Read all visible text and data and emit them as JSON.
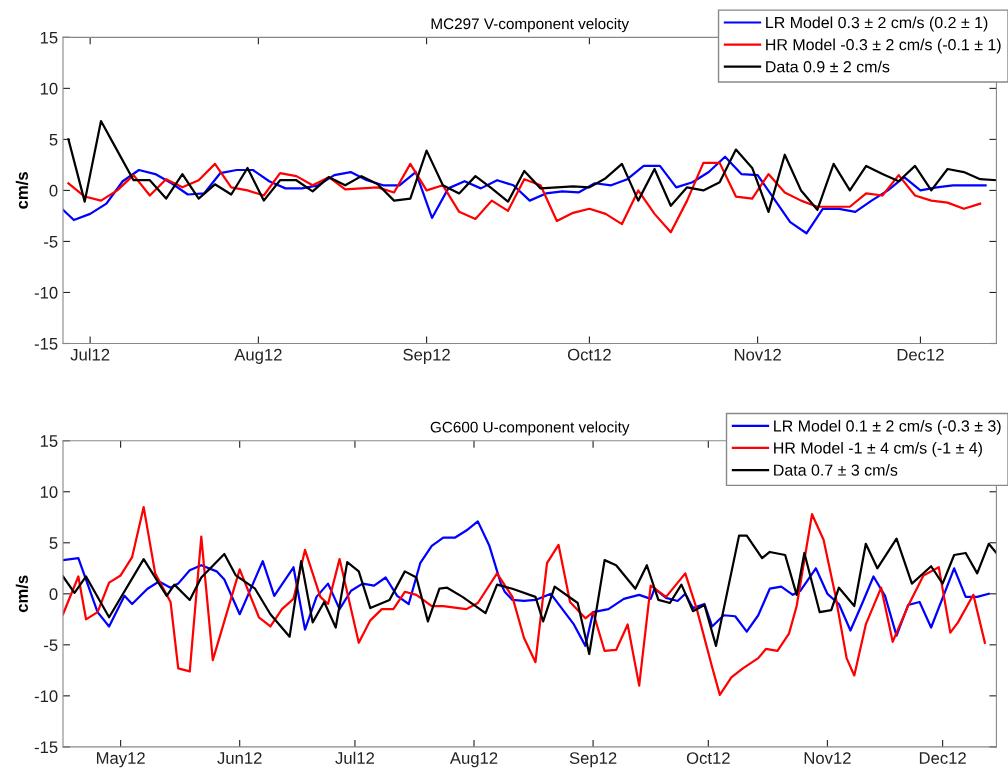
{
  "chart_data": [
    {
      "type": "line",
      "title": "MC297 V-component velocity",
      "ylabel": "cm/s",
      "xlim": [
        "2012-06-26",
        "2012-12-15"
      ],
      "xticks": [
        {
          "value": "2012-07-01",
          "label": "Jul12"
        },
        {
          "value": "2012-08-01",
          "label": "Aug12"
        },
        {
          "value": "2012-09-01",
          "label": "Sep12"
        },
        {
          "value": "2012-10-01",
          "label": "Oct12"
        },
        {
          "value": "2012-11-01",
          "label": "Nov12"
        },
        {
          "value": "2012-12-01",
          "label": "Dec12"
        }
      ],
      "ylim": [
        -15,
        15
      ],
      "yticks": [
        -15,
        -10,
        -5,
        0,
        5,
        10,
        15
      ],
      "grid": false,
      "legend": "top right",
      "marker": "none",
      "line_style": "solid",
      "series": [
        {
          "name": "LR Model 0.3 ± 2 cm/s (0.2 ± 1)",
          "color": "#0000ff",
          "x": [
            "2012-06-26",
            "2012-06-28",
            "2012-07-01",
            "2012-07-04",
            "2012-07-07",
            "2012-07-10",
            "2012-07-13",
            "2012-07-16",
            "2012-07-19",
            "2012-07-22",
            "2012-07-25",
            "2012-07-28",
            "2012-07-31",
            "2012-08-03",
            "2012-08-06",
            "2012-08-09",
            "2012-08-12",
            "2012-08-15",
            "2012-08-18",
            "2012-08-21",
            "2012-08-24",
            "2012-08-27",
            "2012-08-30",
            "2012-09-02",
            "2012-09-05",
            "2012-09-08",
            "2012-09-11",
            "2012-09-14",
            "2012-09-17",
            "2012-09-20",
            "2012-09-23",
            "2012-09-26",
            "2012-09-29",
            "2012-10-02",
            "2012-10-05",
            "2012-10-08",
            "2012-10-11",
            "2012-10-14",
            "2012-10-17",
            "2012-10-20",
            "2012-10-23",
            "2012-10-26",
            "2012-10-29",
            "2012-11-01",
            "2012-11-04",
            "2012-11-07",
            "2012-11-10",
            "2012-11-13",
            "2012-11-16",
            "2012-11-19",
            "2012-11-22",
            "2012-11-25",
            "2012-11-28",
            "2012-12-01",
            "2012-12-04",
            "2012-12-07",
            "2012-12-10",
            "2012-12-13"
          ],
          "values": [
            -1.9,
            -2.9,
            -2.3,
            -1.3,
            0.9,
            2.0,
            1.6,
            0.7,
            -0.4,
            -0.3,
            1.7,
            2.0,
            2.0,
            0.9,
            0.2,
            0.2,
            0.5,
            1.5,
            1.8,
            1.0,
            0.5,
            0.5,
            1.8,
            -2.7,
            0.2,
            0.9,
            0.2,
            1.0,
            0.5,
            -1.0,
            -0.3,
            -0.1,
            -0.2,
            0.7,
            0.5,
            1.1,
            2.4,
            2.4,
            0.3,
            0.8,
            1.8,
            3.3,
            1.6,
            1.5,
            -0.8,
            -3.1,
            -4.2,
            -1.8,
            -1.8,
            -2.1,
            -1.0,
            0.0,
            1.3,
            0.0,
            0.3,
            0.5,
            0.5,
            0.5
          ]
        },
        {
          "name": "HR Model -0.3 ± 2 cm/s (-0.1 ± 1)",
          "color": "#ff0000",
          "x": [
            "2012-06-27",
            "2012-06-30",
            "2012-07-03",
            "2012-07-06",
            "2012-07-09",
            "2012-07-12",
            "2012-07-15",
            "2012-07-18",
            "2012-07-21",
            "2012-07-24",
            "2012-07-27",
            "2012-07-30",
            "2012-08-02",
            "2012-08-05",
            "2012-08-08",
            "2012-08-11",
            "2012-08-14",
            "2012-08-17",
            "2012-08-20",
            "2012-08-23",
            "2012-08-26",
            "2012-08-29",
            "2012-09-01",
            "2012-09-04",
            "2012-09-07",
            "2012-09-10",
            "2012-09-13",
            "2012-09-16",
            "2012-09-19",
            "2012-09-22",
            "2012-09-25",
            "2012-09-28",
            "2012-10-01",
            "2012-10-04",
            "2012-10-07",
            "2012-10-10",
            "2012-10-13",
            "2012-10-16",
            "2012-10-19",
            "2012-10-22",
            "2012-10-25",
            "2012-10-28",
            "2012-10-31",
            "2012-11-03",
            "2012-11-06",
            "2012-11-09",
            "2012-11-12",
            "2012-11-15",
            "2012-11-18",
            "2012-11-21",
            "2012-11-24",
            "2012-11-27",
            "2012-11-30",
            "2012-12-03",
            "2012-12-06",
            "2012-12-09",
            "2012-12-12"
          ],
          "values": [
            0.7,
            -0.6,
            -1.0,
            0.0,
            1.5,
            -0.5,
            1.1,
            0.3,
            1.0,
            2.6,
            0.3,
            0.0,
            -0.5,
            1.7,
            1.4,
            0.5,
            1.3,
            0.1,
            0.2,
            0.3,
            -0.2,
            2.6,
            0.0,
            0.5,
            -2.1,
            -2.8,
            -1.0,
            -2.0,
            1.1,
            0.5,
            -3.0,
            -2.2,
            -1.8,
            -2.3,
            -3.3,
            0.0,
            -2.3,
            -4.1,
            -1.0,
            2.7,
            2.7,
            -0.6,
            -0.8,
            1.6,
            -0.2,
            -1.0,
            -1.6,
            -1.6,
            -1.6,
            -0.3,
            -0.5,
            1.5,
            -0.5,
            -1.0,
            -1.2,
            -1.8,
            -1.3
          ]
        },
        {
          "name": "Data 0.9 ± 2 cm/s",
          "color": "#000000",
          "x": [
            "2012-06-27",
            "2012-06-30",
            "2012-07-03",
            "2012-07-06",
            "2012-07-09",
            "2012-07-12",
            "2012-07-15",
            "2012-07-18",
            "2012-07-21",
            "2012-07-24",
            "2012-07-27",
            "2012-07-30",
            "2012-08-02",
            "2012-08-05",
            "2012-08-08",
            "2012-08-11",
            "2012-08-14",
            "2012-08-17",
            "2012-08-20",
            "2012-08-23",
            "2012-08-26",
            "2012-08-29",
            "2012-09-01",
            "2012-09-04",
            "2012-09-07",
            "2012-09-10",
            "2012-09-13",
            "2012-09-16",
            "2012-09-19",
            "2012-09-22",
            "2012-09-25",
            "2012-09-28",
            "2012-10-01",
            "2012-10-04",
            "2012-10-07",
            "2012-10-10",
            "2012-10-13",
            "2012-10-16",
            "2012-10-19",
            "2012-10-22",
            "2012-10-25",
            "2012-10-28",
            "2012-10-31",
            "2012-11-03",
            "2012-11-06",
            "2012-11-09",
            "2012-11-12",
            "2012-11-15",
            "2012-11-18",
            "2012-11-21",
            "2012-11-24",
            "2012-11-27",
            "2012-11-30",
            "2012-12-03",
            "2012-12-06",
            "2012-12-09",
            "2012-12-12",
            "2012-12-15"
          ],
          "values": [
            5.0,
            -1.1,
            6.8,
            3.9,
            1.0,
            1.0,
            -0.8,
            1.6,
            -0.8,
            0.6,
            -0.4,
            2.2,
            -1.0,
            1.0,
            1.0,
            -0.1,
            1.3,
            0.5,
            1.4,
            0.6,
            -1.0,
            -0.8,
            3.9,
            0.5,
            -0.3,
            1.4,
            0.2,
            -1.1,
            1.9,
            0.2,
            0.3,
            0.4,
            0.3,
            1.2,
            2.6,
            -1.0,
            2.1,
            -1.5,
            0.3,
            0.0,
            0.8,
            4.0,
            2.2,
            -2.1,
            3.5,
            0.0,
            -1.9,
            2.6,
            0.0,
            2.4,
            1.6,
            0.9,
            2.4,
            0.0,
            2.1,
            1.8,
            1.1,
            1.0
          ]
        }
      ]
    },
    {
      "type": "line",
      "title": "GC600 U-component velocity",
      "ylabel": "cm/s",
      "xlim": [
        "2012-04-16",
        "2012-12-15"
      ],
      "xticks": [
        {
          "value": "2012-05-01",
          "label": "May12"
        },
        {
          "value": "2012-06-01",
          "label": "Jun12"
        },
        {
          "value": "2012-07-01",
          "label": "Jul12"
        },
        {
          "value": "2012-08-01",
          "label": "Aug12"
        },
        {
          "value": "2012-09-01",
          "label": "Sep12"
        },
        {
          "value": "2012-10-01",
          "label": "Oct12"
        },
        {
          "value": "2012-11-01",
          "label": "Nov12"
        },
        {
          "value": "2012-12-01",
          "label": "Dec12"
        }
      ],
      "ylim": [
        -15,
        15
      ],
      "yticks": [
        -15,
        -10,
        -5,
        0,
        5,
        10,
        15
      ],
      "grid": false,
      "legend": "top right",
      "marker": "none",
      "line_style": "solid",
      "series": [
        {
          "name": "LR Model 0.1 ± 2 cm/s (-0.3 ± 3)",
          "color": "#0000ff",
          "x": [
            "2012-04-16",
            "2012-04-20",
            "2012-04-25",
            "2012-04-28",
            "2012-05-02",
            "2012-05-04",
            "2012-05-08",
            "2012-05-11",
            "2012-05-14",
            "2012-05-16",
            "2012-05-19",
            "2012-05-22",
            "2012-05-26",
            "2012-05-28",
            "2012-06-01",
            "2012-06-07",
            "2012-06-10",
            "2012-06-15",
            "2012-06-18",
            "2012-06-21",
            "2012-06-24",
            "2012-06-27",
            "2012-06-30",
            "2012-07-03",
            "2012-07-06",
            "2012-07-09",
            "2012-07-12",
            "2012-07-15",
            "2012-07-18",
            "2012-07-21",
            "2012-07-24",
            "2012-07-27",
            "2012-07-30",
            "2012-08-02",
            "2012-08-05",
            "2012-08-08",
            "2012-08-09",
            "2012-08-11",
            "2012-08-14",
            "2012-08-17",
            "2012-08-21",
            "2012-08-27",
            "2012-08-30",
            "2012-09-01",
            "2012-09-05",
            "2012-09-09",
            "2012-09-13",
            "2012-09-16",
            "2012-09-17",
            "2012-09-20",
            "2012-09-23",
            "2012-09-25",
            "2012-09-27",
            "2012-09-30",
            "2012-10-02",
            "2012-10-05",
            "2012-10-08",
            "2012-10-11",
            "2012-10-14",
            "2012-10-17",
            "2012-10-20",
            "2012-10-23",
            "2012-10-25",
            "2012-10-29",
            "2012-11-01",
            "2012-11-04",
            "2012-11-07",
            "2012-11-10",
            "2012-11-13",
            "2012-11-16",
            "2012-11-19",
            "2012-11-22",
            "2012-11-25",
            "2012-11-28",
            "2012-12-04",
            "2012-12-07",
            "2012-12-10",
            "2012-12-13"
          ],
          "values": [
            3.3,
            3.5,
            -1.8,
            -3.2,
            -0.2,
            -1.0,
            0.5,
            1.2,
            0.6,
            1.0,
            2.3,
            2.8,
            2.2,
            1.4,
            -2.0,
            3.2,
            -0.2,
            2.6,
            -3.5,
            -0.3,
            1.0,
            -1.5,
            0.3,
            1.0,
            0.8,
            1.6,
            -0.2,
            -1.0,
            3.0,
            4.7,
            5.5,
            5.5,
            6.2,
            7.1,
            4.7,
            1.0,
            0.2,
            -0.6,
            -0.7,
            -0.6,
            0.0,
            -3.0,
            -5.1,
            -1.8,
            -1.5,
            -0.5,
            -0.1,
            -0.5,
            0.5,
            -0.4,
            -0.7,
            0.0,
            -1.4,
            -1.0,
            -3.2,
            -2.1,
            -2.2,
            -3.7,
            -2.1,
            0.5,
            0.7,
            -0.1,
            0.3,
            2.5,
            0.0,
            -1.0,
            -3.6,
            -1.0,
            1.7,
            -0.2,
            -4.1,
            -1.1,
            -0.8,
            -3.3,
            2.5,
            -0.3,
            -0.3,
            0.0
          ]
        },
        {
          "name": "HR Model -1 ± 4 cm/s (-1 ± 4)",
          "color": "#ff0000",
          "x": [
            "2012-04-16",
            "2012-04-20",
            "2012-04-22",
            "2012-04-25",
            "2012-04-28",
            "2012-05-01",
            "2012-05-04",
            "2012-05-07",
            "2012-05-10",
            "2012-05-14",
            "2012-05-16",
            "2012-05-19",
            "2012-05-22",
            "2012-05-25",
            "2012-06-01",
            "2012-06-06",
            "2012-06-09",
            "2012-06-12",
            "2012-06-15",
            "2012-06-18",
            "2012-06-22",
            "2012-06-24",
            "2012-06-27",
            "2012-07-02",
            "2012-07-05",
            "2012-07-08",
            "2012-07-11",
            "2012-07-14",
            "2012-07-17",
            "2012-07-21",
            "2012-07-24",
            "2012-07-30",
            "2012-08-02",
            "2012-08-07",
            "2012-08-11",
            "2012-08-14",
            "2012-08-17",
            "2012-08-20",
            "2012-08-23",
            "2012-08-26",
            "2012-08-30",
            "2012-09-01",
            "2012-09-04",
            "2012-09-07",
            "2012-09-10",
            "2012-09-13",
            "2012-09-16",
            "2012-09-20",
            "2012-09-25",
            "2012-09-28",
            "2012-10-02",
            "2012-10-04",
            "2012-10-07",
            "2012-10-10",
            "2012-10-14",
            "2012-10-16",
            "2012-10-19",
            "2012-10-22",
            "2012-10-24",
            "2012-10-28",
            "2012-10-31",
            "2012-11-03",
            "2012-11-06",
            "2012-11-08",
            "2012-11-11",
            "2012-11-15",
            "2012-11-18",
            "2012-11-22",
            "2012-11-26",
            "2012-11-30",
            "2012-12-03",
            "2012-12-05",
            "2012-12-09",
            "2012-12-12"
          ],
          "values": [
            -2.0,
            1.7,
            -2.5,
            -1.8,
            1.1,
            1.8,
            3.6,
            8.5,
            2.0,
            -0.8,
            -7.3,
            -7.6,
            5.6,
            -6.5,
            2.4,
            -2.3,
            -3.2,
            -1.5,
            -0.5,
            4.3,
            -0.3,
            -1.0,
            3.4,
            -4.8,
            -2.6,
            -1.5,
            -1.5,
            0.2,
            -0.1,
            -1.2,
            -1.2,
            -1.5,
            -0.9,
            2.0,
            -0.3,
            -4.3,
            -6.7,
            3.0,
            4.8,
            -0.8,
            -2.4,
            -1.8,
            -5.6,
            -5.5,
            -3.0,
            -9.0,
            0.8,
            -0.3,
            2.0,
            -1.5,
            -7.2,
            -9.9,
            -8.2,
            -7.3,
            -6.3,
            -5.4,
            -5.6,
            -3.9,
            -1.2,
            7.8,
            5.3,
            0.0,
            -6.3,
            -8.0,
            -3.0,
            0.6,
            -4.7,
            -1.2,
            1.8,
            2.6,
            -3.8,
            -2.8,
            -0.1,
            -4.8
          ]
        },
        {
          "name": "Data 0.7 ± 3 cm/s",
          "color": "#000000",
          "x": [
            "2012-04-16",
            "2012-04-19",
            "2012-04-22",
            "2012-04-28",
            "2012-05-07",
            "2012-05-13",
            "2012-05-15",
            "2012-05-19",
            "2012-05-22",
            "2012-05-28",
            "2012-05-31",
            "2012-06-05",
            "2012-06-09",
            "2012-06-14",
            "2012-06-17",
            "2012-06-20",
            "2012-06-23",
            "2012-06-26",
            "2012-06-29",
            "2012-07-02",
            "2012-07-05",
            "2012-07-10",
            "2012-07-14",
            "2012-07-17",
            "2012-07-20",
            "2012-07-23",
            "2012-07-25",
            "2012-07-29",
            "2012-08-04",
            "2012-08-07",
            "2012-08-11",
            "2012-08-17",
            "2012-08-19",
            "2012-08-22",
            "2012-08-28",
            "2012-08-31",
            "2012-09-04",
            "2012-09-07",
            "2012-09-12",
            "2012-09-15",
            "2012-09-18",
            "2012-09-21",
            "2012-09-24",
            "2012-09-27",
            "2012-09-30",
            "2012-10-03",
            "2012-10-09",
            "2012-10-11",
            "2012-10-15",
            "2012-10-17",
            "2012-10-21",
            "2012-10-24",
            "2012-10-26",
            "2012-10-30",
            "2012-11-02",
            "2012-11-04",
            "2012-11-08",
            "2012-11-11",
            "2012-11-14",
            "2012-11-19",
            "2012-11-23",
            "2012-11-28",
            "2012-12-01",
            "2012-12-04",
            "2012-12-07",
            "2012-12-10",
            "2012-12-13",
            "2012-12-15"
          ],
          "values": [
            1.7,
            0.1,
            1.7,
            -2.3,
            3.4,
            -0.2,
            0.9,
            -0.6,
            1.6,
            3.9,
            1.8,
            0.5,
            -2.0,
            -4.2,
            3.2,
            -2.8,
            -0.8,
            -3.3,
            3.1,
            2.2,
            -1.4,
            -0.6,
            2.2,
            1.6,
            -2.7,
            0.5,
            0.6,
            -0.3,
            -1.9,
            0.9,
            0.5,
            -0.3,
            -2.7,
            0.7,
            -0.9,
            -5.9,
            3.3,
            2.8,
            0.5,
            2.8,
            -0.6,
            -0.9,
            0.9,
            -1.7,
            -1.1,
            -5.1,
            5.7,
            5.7,
            3.5,
            4.1,
            3.8,
            -0.1,
            4.0,
            -1.8,
            -1.6,
            0.6,
            -1.2,
            4.9,
            2.5,
            5.4,
            1.0,
            2.7,
            1.0,
            3.8,
            4.0,
            2.0,
            4.9,
            4.0
          ]
        }
      ]
    }
  ]
}
